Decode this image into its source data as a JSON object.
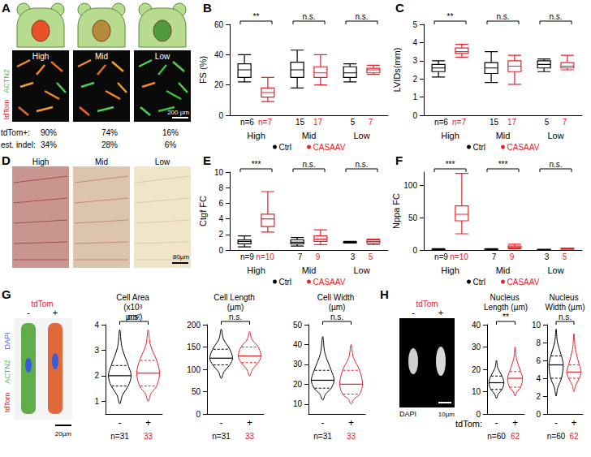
{
  "figure": {
    "panel_A": {
      "panel": "A",
      "channels": [
        {
          "name": "ACTN2",
          "color": "#3fbf3f"
        },
        {
          "name": "tdTom",
          "color": "#e8222a"
        }
      ],
      "groups": [
        "High",
        "Mid",
        "Low"
      ],
      "rows": [
        {
          "label": "tdTom+:",
          "values": [
            "90%",
            "74%",
            "16%"
          ]
        },
        {
          "label": "est. indel:",
          "values": [
            "34%",
            "28%",
            "6%"
          ]
        }
      ],
      "scale_bar": "200 µm"
    },
    "panel_D": {
      "panel": "D",
      "groups": [
        "High",
        "Mid",
        "Low"
      ],
      "scale_bar": "80µm"
    },
    "panel_G": {
      "panel": "G",
      "header": "tdTom",
      "conditions": [
        "-",
        "+"
      ],
      "channels": [
        {
          "name": "DAPI",
          "color": "#3a5bd9"
        },
        {
          "name": "ACTN2",
          "color": "#3fbf3f"
        },
        {
          "name": "tdTom",
          "color": "#e8222a"
        }
      ],
      "scale_bar": "20µm"
    },
    "panel_H": {
      "panel": "H",
      "header": "tdTom",
      "conditions": [
        "-",
        "+"
      ],
      "channels": [
        {
          "name": "DAPI",
          "color": "#000000"
        }
      ],
      "scale_bar": "10µm"
    }
  },
  "chart_data": [
    {
      "type": "boxplot",
      "panel": "B",
      "title": "FS (%)",
      "categories": [
        "High",
        "Mid",
        "Low"
      ],
      "n_prefix": "n=",
      "significance": [
        "**",
        "n.s.",
        "n.s."
      ],
      "ylim": [
        0,
        60
      ],
      "yticks": [
        0,
        20,
        40,
        60
      ],
      "grid": false,
      "legend": "bottom",
      "series": [
        {
          "name": "Ctrl",
          "color": "#000000",
          "n": [
            6,
            15,
            5
          ],
          "values": [
            [
              22,
              25,
              30,
              34,
              40
            ],
            [
              18,
              25,
              30,
              35,
              43
            ],
            [
              22,
              25,
              28,
              32,
              34
            ]
          ]
        },
        {
          "name": "CASAAV",
          "color": "#e8222a",
          "n": [
            7,
            17,
            7
          ],
          "values": [
            [
              9,
              12,
              15,
              18,
              25
            ],
            [
              20,
              25,
              28,
              32,
              40
            ],
            [
              27,
              28,
              30,
              31,
              33
            ]
          ]
        }
      ]
    },
    {
      "type": "boxplot",
      "panel": "C",
      "title": "LVIDs(mm)",
      "categories": [
        "High",
        "Mid",
        "Low"
      ],
      "n_prefix": "n=",
      "significance": [
        "**",
        "n.s.",
        "n.s."
      ],
      "ylim": [
        0,
        5
      ],
      "yticks": [
        0,
        1,
        2,
        3,
        4,
        5
      ],
      "grid": false,
      "legend": "bottom",
      "series": [
        {
          "name": "Ctrl",
          "color": "#000000",
          "n": [
            6,
            15,
            5
          ],
          "values": [
            [
              2.1,
              2.4,
              2.6,
              2.8,
              3.0
            ],
            [
              1.8,
              2.3,
              2.6,
              2.9,
              3.5
            ],
            [
              2.4,
              2.6,
              2.8,
              3.0,
              3.1
            ]
          ]
        },
        {
          "name": "CASAAV",
          "color": "#e8222a",
          "n": [
            7,
            17,
            7
          ],
          "values": [
            [
              3.2,
              3.4,
              3.5,
              3.7,
              3.9
            ],
            [
              1.7,
              2.4,
              2.7,
              3.0,
              3.3
            ],
            [
              2.5,
              2.6,
              2.7,
              2.9,
              3.3
            ]
          ]
        }
      ]
    },
    {
      "type": "boxplot",
      "panel": "E",
      "title": "Ctgf FC",
      "categories": [
        "High",
        "Mid",
        "Low"
      ],
      "n_prefix": "n=",
      "significance": [
        "***",
        "n.s.",
        "n.s."
      ],
      "ylim": [
        0,
        10
      ],
      "yticks": [
        0,
        2,
        4,
        6,
        8,
        10
      ],
      "grid": false,
      "legend": "bottom",
      "series": [
        {
          "name": "Ctrl",
          "color": "#000000",
          "n": [
            9,
            7,
            3
          ],
          "values": [
            [
              0.4,
              0.8,
              1.1,
              1.3,
              1.8
            ],
            [
              0.5,
              0.8,
              1.0,
              1.3,
              1.6
            ],
            [
              0.9,
              0.95,
              1.0,
              1.05,
              1.1
            ]
          ]
        },
        {
          "name": "CASAAV",
          "color": "#e8222a",
          "n": [
            10,
            9,
            5
          ],
          "values": [
            [
              2.3,
              3.0,
              4.0,
              4.6,
              7.5
            ],
            [
              0.7,
              1.1,
              1.4,
              1.8,
              2.6
            ],
            [
              0.7,
              0.9,
              1.1,
              1.3,
              1.4
            ]
          ]
        }
      ]
    },
    {
      "type": "boxplot",
      "panel": "F",
      "title": "Nppa FC",
      "categories": [
        "High",
        "Mid",
        "Low"
      ],
      "n_prefix": "n=",
      "significance": [
        "***",
        "***",
        "n.s."
      ],
      "ylim": [
        0,
        120
      ],
      "yticks": [
        0,
        50,
        100
      ],
      "grid": false,
      "legend": "bottom",
      "series": [
        {
          "name": "Ctrl",
          "color": "#000000",
          "n": [
            9,
            7,
            3
          ],
          "values": [
            [
              0.5,
              0.8,
              1.0,
              1.2,
              2.0
            ],
            [
              0.5,
              0.8,
              1.0,
              1.3,
              2.0
            ],
            [
              0.8,
              0.9,
              1.0,
              1.1,
              1.2
            ]
          ]
        },
        {
          "name": "CASAAV",
          "color": "#e8222a",
          "n": [
            10,
            9,
            5
          ],
          "values": [
            [
              25,
              45,
              55,
              68,
              118
            ],
            [
              2,
              3,
              4,
              6,
              9
            ],
            [
              1,
              1.5,
              2,
              2.5,
              3
            ]
          ]
        }
      ]
    },
    {
      "type": "violin",
      "title": "Cell Area (x10³ µm²)",
      "categories": [
        "-",
        "+"
      ],
      "colors": [
        "#000000",
        "#e8222a"
      ],
      "n_prefix": "n=",
      "n": [
        31,
        33
      ],
      "significance": "n.s.",
      "ylim": [
        0.5,
        4
      ],
      "yticks": [
        1,
        2,
        3,
        4
      ],
      "grid": false,
      "values": [
        [
          0.9,
          1.6,
          2.0,
          2.4,
          3.8
        ],
        [
          1.0,
          1.6,
          2.1,
          2.6,
          3.8
        ]
      ]
    },
    {
      "type": "violin",
      "title": "Cell Length (µm)",
      "categories": [
        "-",
        "+"
      ],
      "colors": [
        "#000000",
        "#e8222a"
      ],
      "n_prefix": "n=",
      "n": [
        31,
        33
      ],
      "significance": "n.s.",
      "ylim": [
        0,
        200
      ],
      "yticks": [
        0,
        50,
        100,
        150,
        200
      ],
      "grid": false,
      "values": [
        [
          80,
          110,
          125,
          145,
          190
        ],
        [
          85,
          115,
          130,
          150,
          185
        ]
      ]
    },
    {
      "type": "violin",
      "title": "Cell Width (µm)",
      "categories": [
        "-",
        "+"
      ],
      "colors": [
        "#000000",
        "#e8222a"
      ],
      "n_prefix": "n=",
      "n": [
        31,
        33
      ],
      "significance": "n.s.",
      "ylim": [
        5,
        50
      ],
      "yticks": [
        10,
        20,
        30,
        40,
        50
      ],
      "grid": false,
      "values": [
        [
          12,
          18,
          22,
          27,
          44
        ],
        [
          10,
          15,
          20,
          27,
          40
        ]
      ]
    },
    {
      "type": "violin",
      "title": "Nucleus Length (µm)",
      "x_label": "tdTom:",
      "categories": [
        "-",
        "+"
      ],
      "colors": [
        "#000000",
        "#e8222a"
      ],
      "n_prefix": "n=",
      "n": [
        60,
        62
      ],
      "significance": "**",
      "ylim": [
        0,
        40
      ],
      "yticks": [
        0,
        10,
        20,
        30,
        40
      ],
      "grid": false,
      "values": [
        [
          7,
          11,
          14,
          17,
          24
        ],
        [
          8,
          12,
          16,
          19,
          30
        ]
      ]
    },
    {
      "type": "violin",
      "title": "Nucleus Width (µm)",
      "categories": [
        "-",
        "+"
      ],
      "colors": [
        "#000000",
        "#e8222a"
      ],
      "n_prefix": "n=",
      "n": [
        60,
        62
      ],
      "significance": "n.s.",
      "ylim": [
        0,
        10
      ],
      "yticks": [
        0,
        2,
        4,
        6,
        8,
        10
      ],
      "grid": false,
      "values": [
        [
          2,
          4,
          5.5,
          6.5,
          9.5
        ],
        [
          2.5,
          4,
          4.7,
          5.5,
          9
        ]
      ]
    }
  ]
}
